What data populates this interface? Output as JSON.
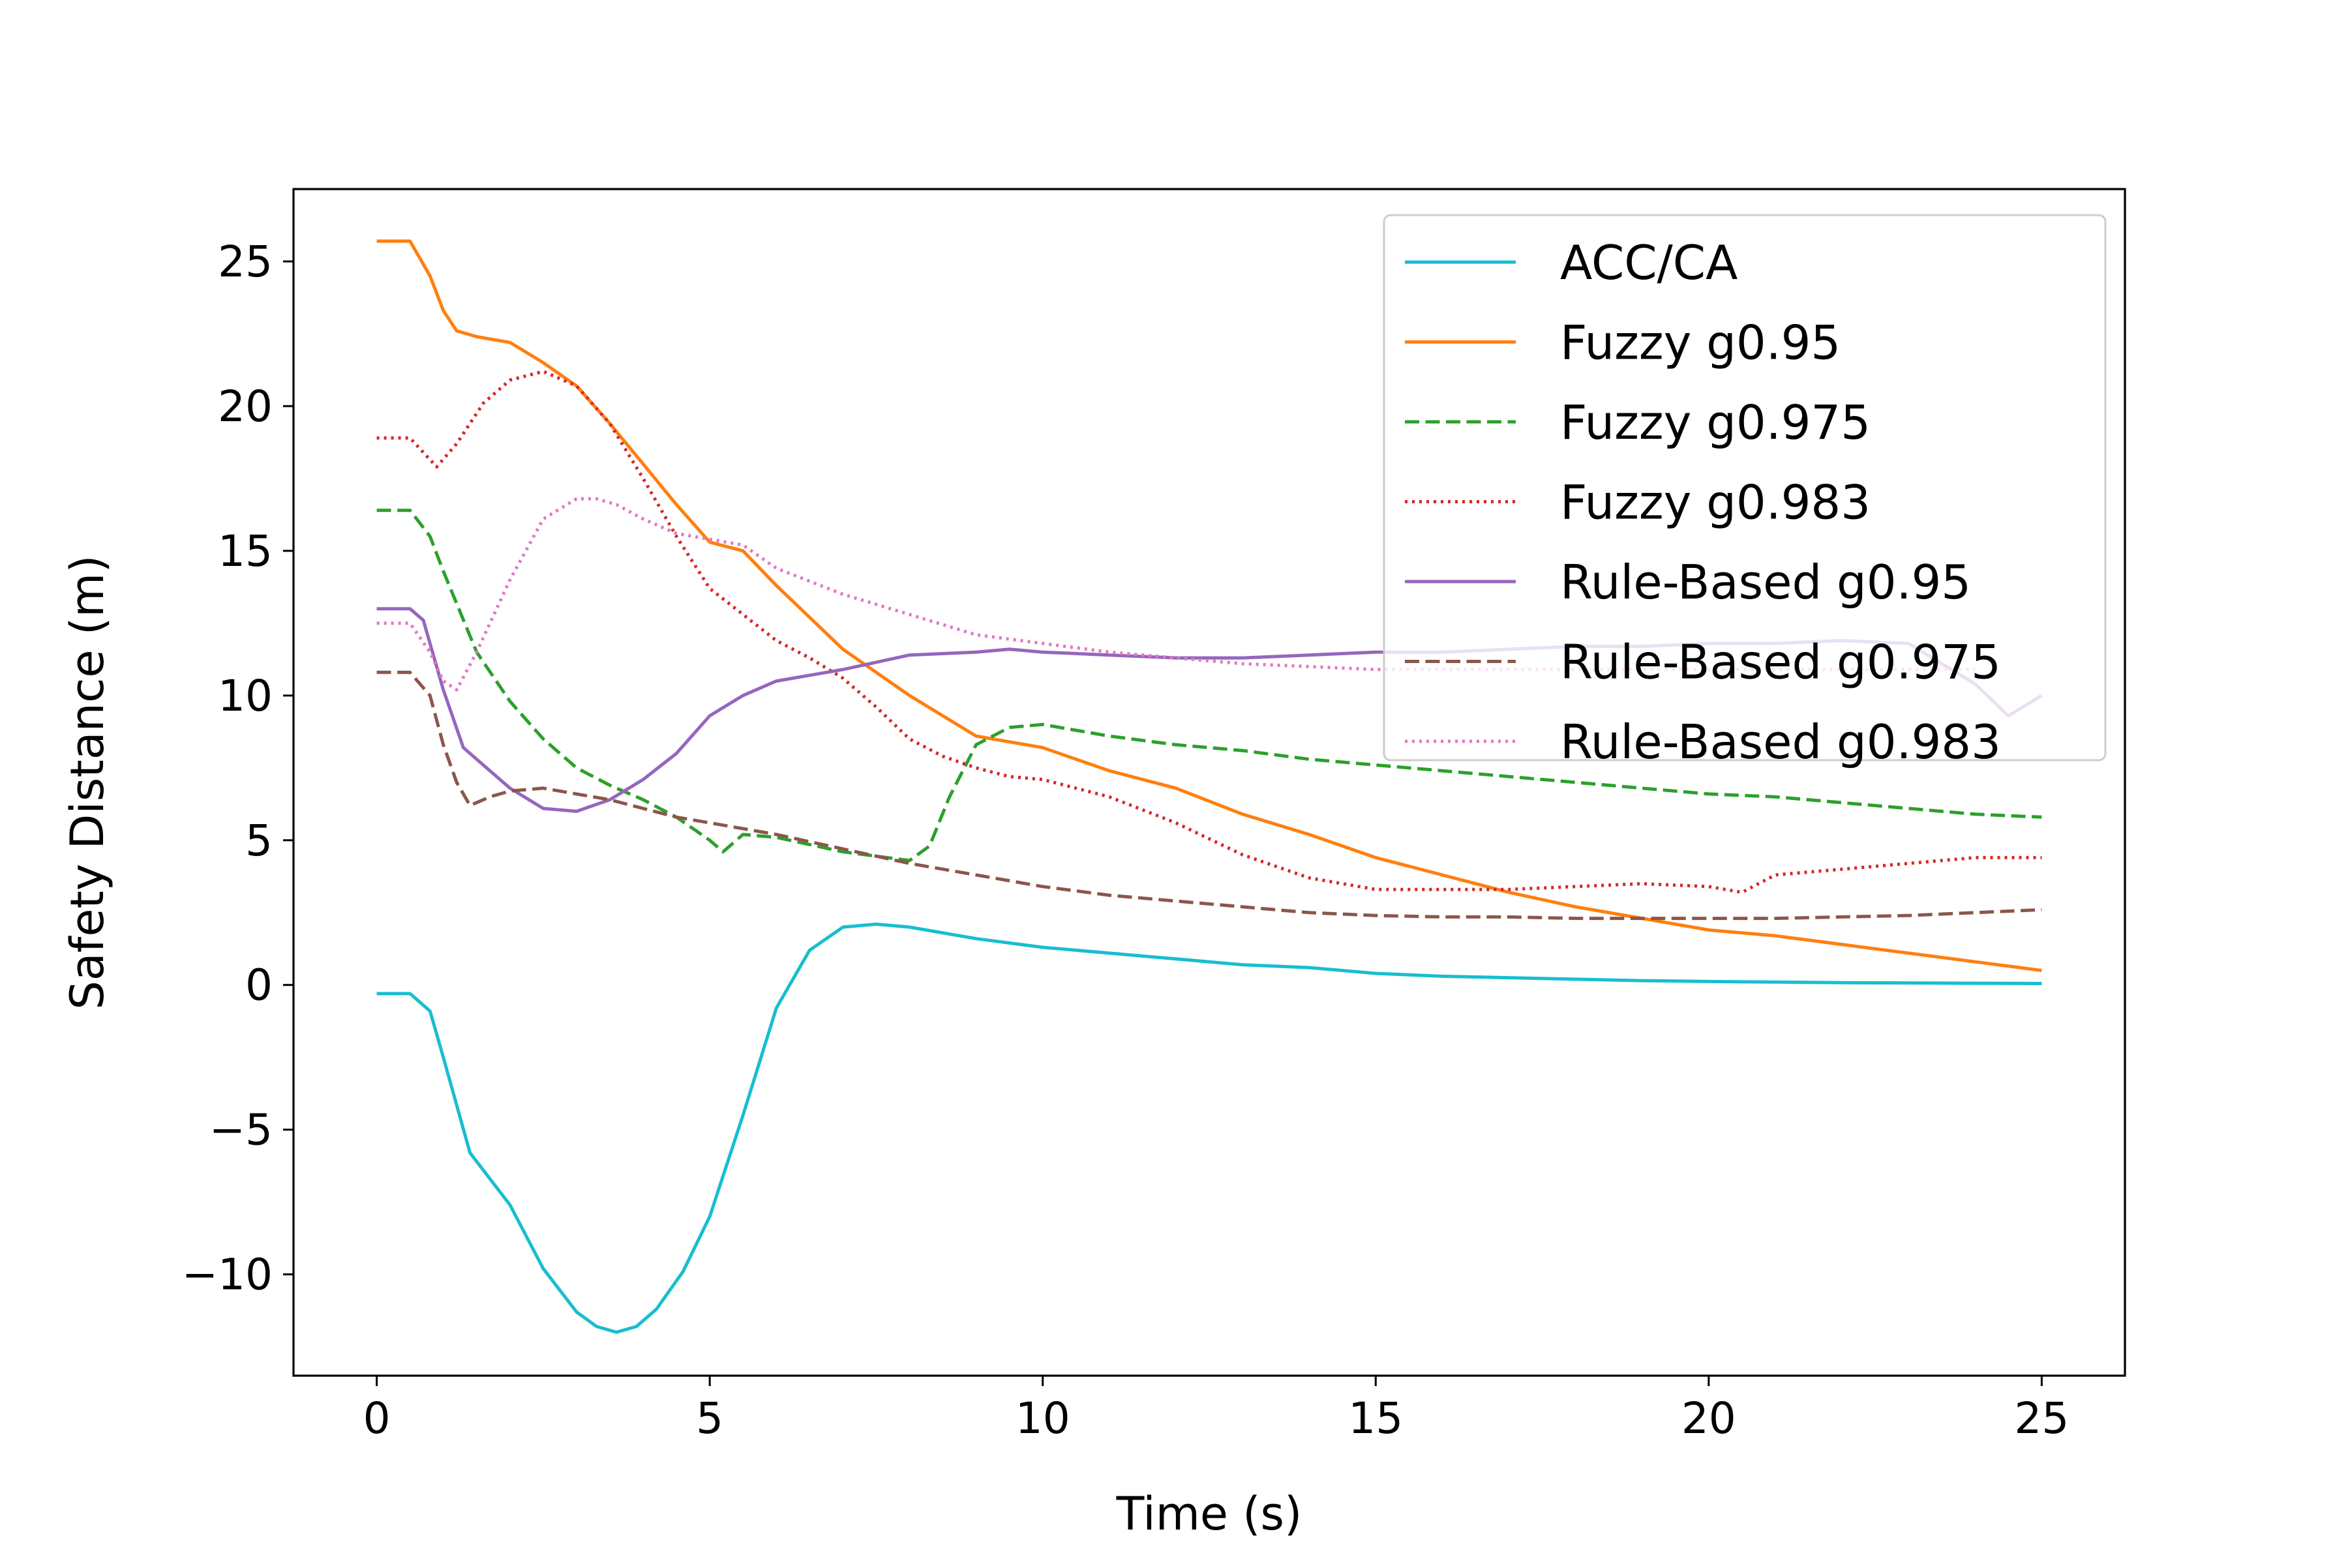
{
  "chart_data": {
    "type": "line",
    "title": "",
    "xlabel": "Time (s)",
    "ylabel": "Safety Distance (m)",
    "xlim": [
      -1.25,
      26.25
    ],
    "ylim": [
      -13.5,
      27.5
    ],
    "xticks": [
      0,
      5,
      10,
      15,
      20,
      25
    ],
    "yticks": [
      -10,
      -5,
      0,
      5,
      10,
      15,
      20,
      25
    ],
    "xtick_labels": [
      "0",
      "5",
      "10",
      "15",
      "20",
      "25"
    ],
    "ytick_labels": [
      "−10",
      "−5",
      "0",
      "5",
      "10",
      "15",
      "20",
      "25"
    ],
    "grid": false,
    "legend": "top-right",
    "series": [
      {
        "name": "ACC/CA",
        "color": "#17becf",
        "style": "solid",
        "x": [
          0,
          0.5,
          0.8,
          1.0,
          1.4,
          2.0,
          2.5,
          3.0,
          3.3,
          3.6,
          3.9,
          4.2,
          4.6,
          5.0,
          5.5,
          6.0,
          6.5,
          7.0,
          7.5,
          8.0,
          9.0,
          10.0,
          11.0,
          12.0,
          13.0,
          14.0,
          15.0,
          16.0,
          17.0,
          18.0,
          19.0,
          20.0,
          21.0,
          22.0,
          23.0,
          24.0,
          25.0
        ],
        "y": [
          -0.3,
          -0.3,
          -0.9,
          -2.5,
          -5.8,
          -7.6,
          -9.8,
          -11.3,
          -11.8,
          -12.0,
          -11.8,
          -11.2,
          -9.9,
          -8.0,
          -4.5,
          -0.8,
          1.2,
          2.0,
          2.1,
          2.0,
          1.6,
          1.3,
          1.1,
          0.9,
          0.7,
          0.6,
          0.4,
          0.3,
          0.25,
          0.2,
          0.15,
          0.12,
          0.1,
          0.08,
          0.07,
          0.06,
          0.05
        ]
      },
      {
        "name": "Fuzzy g0.95",
        "color": "#ff7f0e",
        "style": "solid",
        "x": [
          0,
          0.5,
          0.8,
          1.0,
          1.2,
          1.5,
          2.0,
          2.5,
          3.0,
          3.5,
          4.0,
          4.5,
          5.0,
          5.5,
          6.0,
          7.0,
          8.0,
          9.0,
          10.0,
          11.0,
          12.0,
          13.0,
          14.0,
          15.0,
          16.0,
          17.0,
          18.0,
          19.0,
          20.0,
          21.0,
          22.0,
          23.0,
          24.0,
          25.0
        ],
        "y": [
          25.7,
          25.7,
          24.5,
          23.3,
          22.6,
          22.4,
          22.2,
          21.5,
          20.7,
          19.4,
          18.0,
          16.6,
          15.3,
          15.0,
          13.8,
          11.6,
          10.0,
          8.6,
          8.2,
          7.4,
          6.8,
          5.9,
          5.2,
          4.4,
          3.8,
          3.2,
          2.7,
          2.3,
          1.9,
          1.7,
          1.4,
          1.1,
          0.8,
          0.5
        ]
      },
      {
        "name": "Fuzzy g0.975",
        "color": "#2ca02c",
        "style": "dashed",
        "x": [
          0,
          0.5,
          0.8,
          1.0,
          1.5,
          2.0,
          2.5,
          3.0,
          3.5,
          4.0,
          4.5,
          5.0,
          5.2,
          5.5,
          6.0,
          7.0,
          8.0,
          8.3,
          8.6,
          9.0,
          9.5,
          10.0,
          11.0,
          12.0,
          13.0,
          14.0,
          15.0,
          16.0,
          17.0,
          18.0,
          19.0,
          20.0,
          21.0,
          22.0,
          23.0,
          24.0,
          25.0
        ],
        "y": [
          16.4,
          16.4,
          15.5,
          14.3,
          11.5,
          9.8,
          8.5,
          7.5,
          6.9,
          6.4,
          5.8,
          5.0,
          4.6,
          5.2,
          5.1,
          4.6,
          4.3,
          4.8,
          6.5,
          8.3,
          8.9,
          9.0,
          8.6,
          8.3,
          8.1,
          7.8,
          7.6,
          7.4,
          7.2,
          7.0,
          6.8,
          6.6,
          6.5,
          6.3,
          6.1,
          5.9,
          5.8
        ]
      },
      {
        "name": "Fuzzy g0.983",
        "color": "#d62728",
        "style": "dotted",
        "x": [
          0,
          0.5,
          0.9,
          1.2,
          1.6,
          2.0,
          2.5,
          3.0,
          3.5,
          4.0,
          4.5,
          5.0,
          5.5,
          6.0,
          6.5,
          7.0,
          7.5,
          8.0,
          8.5,
          9.0,
          9.5,
          10.0,
          11.0,
          12.0,
          13.0,
          14.0,
          15.0,
          16.0,
          17.0,
          18.0,
          19.0,
          20.0,
          20.5,
          21.0,
          22.0,
          23.0,
          24.0,
          25.0
        ],
        "y": [
          18.9,
          18.9,
          17.9,
          18.7,
          20.1,
          20.9,
          21.2,
          20.7,
          19.4,
          17.5,
          15.5,
          13.7,
          12.8,
          11.9,
          11.3,
          10.6,
          9.6,
          8.5,
          7.9,
          7.5,
          7.2,
          7.1,
          6.5,
          5.6,
          4.5,
          3.7,
          3.3,
          3.3,
          3.3,
          3.4,
          3.5,
          3.4,
          3.2,
          3.8,
          4.0,
          4.2,
          4.4,
          4.4
        ]
      },
      {
        "name": "Rule-Based g0.95",
        "color": "#9467bd",
        "style": "solid",
        "x": [
          0,
          0.5,
          0.7,
          1.0,
          1.3,
          1.6,
          2.0,
          2.5,
          3.0,
          3.5,
          4.0,
          4.5,
          5.0,
          5.5,
          6.0,
          7.0,
          8.0,
          9.0,
          9.5,
          10.0,
          11.0,
          12.0,
          13.0,
          14.0,
          15.0,
          16.0,
          17.0,
          18.0,
          19.0,
          20.0,
          21.0,
          22.0,
          23.0,
          24.0,
          24.5,
          25.0
        ],
        "y": [
          13.0,
          13.0,
          12.6,
          10.2,
          8.2,
          7.6,
          6.8,
          6.1,
          6.0,
          6.4,
          7.1,
          8.0,
          9.3,
          10.0,
          10.5,
          10.9,
          11.4,
          11.5,
          11.6,
          11.5,
          11.4,
          11.3,
          11.3,
          11.4,
          11.5,
          11.5,
          11.6,
          11.7,
          11.7,
          11.8,
          11.8,
          11.9,
          11.8,
          10.4,
          9.3,
          10.0
        ]
      },
      {
        "name": "Rule-Based g0.975",
        "color": "#8c564b",
        "style": "dashed",
        "x": [
          0,
          0.5,
          0.8,
          1.0,
          1.2,
          1.4,
          1.7,
          2.0,
          2.5,
          3.0,
          3.5,
          4.0,
          4.5,
          5.0,
          5.5,
          6.0,
          7.0,
          8.0,
          9.0,
          10.0,
          11.0,
          12.0,
          13.0,
          14.0,
          15.0,
          16.0,
          17.0,
          18.0,
          19.0,
          20.0,
          21.0,
          22.0,
          23.0,
          24.0,
          25.0
        ],
        "y": [
          10.8,
          10.8,
          10.0,
          8.3,
          7.0,
          6.2,
          6.5,
          6.7,
          6.8,
          6.6,
          6.4,
          6.1,
          5.8,
          5.6,
          5.4,
          5.2,
          4.7,
          4.2,
          3.8,
          3.4,
          3.1,
          2.9,
          2.7,
          2.5,
          2.4,
          2.35,
          2.35,
          2.3,
          2.3,
          2.3,
          2.3,
          2.35,
          2.4,
          2.5,
          2.6
        ]
      },
      {
        "name": "Rule-Based g0.983",
        "color": "#e377c2",
        "style": "dotted",
        "x": [
          0,
          0.5,
          0.8,
          1.0,
          1.2,
          1.5,
          2.0,
          2.5,
          3.0,
          3.3,
          3.6,
          4.0,
          4.5,
          5.0,
          5.5,
          6.0,
          7.0,
          8.0,
          9.0,
          10.0,
          11.0,
          12.0,
          13.0,
          14.0,
          15.0,
          16.0,
          17.0,
          18.0,
          19.0,
          20.0,
          21.0,
          22.0,
          23.0,
          24.0
        ],
        "y": [
          12.5,
          12.5,
          11.5,
          10.5,
          10.2,
          11.5,
          14.0,
          16.1,
          16.8,
          16.8,
          16.6,
          16.1,
          15.6,
          15.4,
          15.2,
          14.4,
          13.5,
          12.8,
          12.1,
          11.8,
          11.5,
          11.3,
          11.1,
          11.0,
          10.9,
          10.9,
          10.9,
          10.9,
          10.9,
          10.9,
          10.9,
          10.9,
          10.9,
          10.9
        ]
      }
    ]
  }
}
